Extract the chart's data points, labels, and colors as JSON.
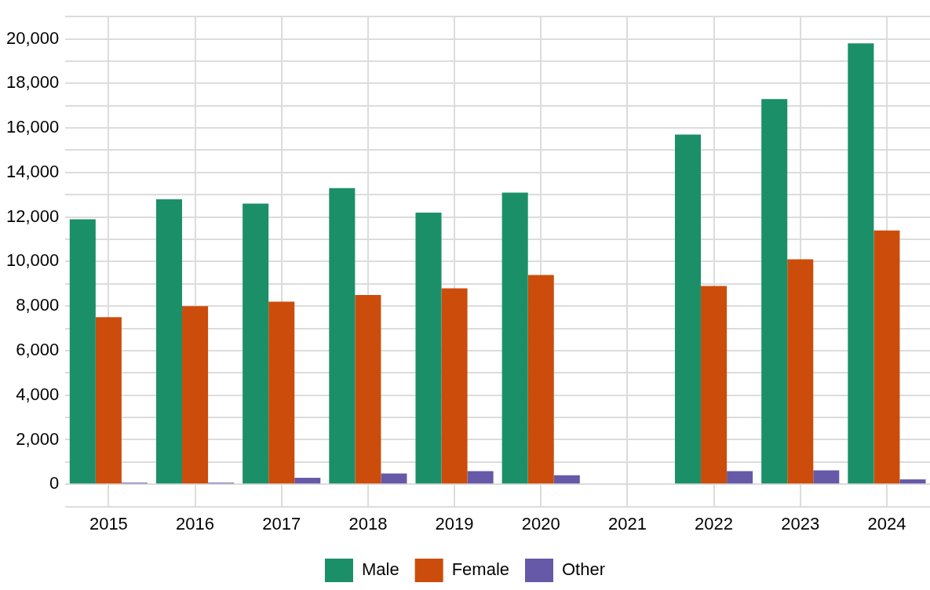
{
  "chart_data": {
    "type": "bar",
    "categories": [
      "2015",
      "2016",
      "2017",
      "2018",
      "2019",
      "2020",
      "2021",
      "2022",
      "2023",
      "2024"
    ],
    "series": [
      {
        "name": "Male",
        "color": "#1b9068",
        "values": [
          11900,
          12800,
          12600,
          13300,
          12200,
          13100,
          null,
          15700,
          17300,
          19800
        ]
      },
      {
        "name": "Female",
        "color": "#cc4c0b",
        "values": [
          7500,
          8000,
          8200,
          8500,
          8800,
          9400,
          null,
          8900,
          10100,
          11400
        ]
      },
      {
        "name": "Other",
        "color": "#6659a8",
        "values": [
          70,
          70,
          290,
          480,
          590,
          400,
          null,
          590,
          620,
          220
        ]
      }
    ],
    "ylim": [
      -1000,
      21000
    ],
    "yticks": [
      {
        "value": -1000,
        "label": null
      },
      0,
      {
        "value": 1000,
        "label": null
      },
      {
        "value": 2000,
        "label": "2,000"
      },
      {
        "value": 3000,
        "label": null
      },
      {
        "value": 4000,
        "label": "4,000"
      },
      {
        "value": 5000,
        "label": null
      },
      {
        "value": 6000,
        "label": "6,000"
      },
      {
        "value": 7000,
        "label": null
      },
      {
        "value": 8000,
        "label": "8,000"
      },
      {
        "value": 9000,
        "label": null
      },
      {
        "value": 10000,
        "label": "10,000"
      },
      {
        "value": 11000,
        "label": null
      },
      {
        "value": 12000,
        "label": "12,000"
      },
      {
        "value": 13000,
        "label": null
      },
      {
        "value": 14000,
        "label": "14,000"
      },
      {
        "value": 15000,
        "label": null
      },
      {
        "value": 16000,
        "label": "16,000"
      },
      {
        "value": 17000,
        "label": null
      },
      {
        "value": 18000,
        "label": "18,000"
      },
      {
        "value": 19000,
        "label": null
      },
      {
        "value": 20000,
        "label": "20,000"
      },
      {
        "value": 21000,
        "label": null
      }
    ],
    "grid": true,
    "legend": "bottom"
  }
}
